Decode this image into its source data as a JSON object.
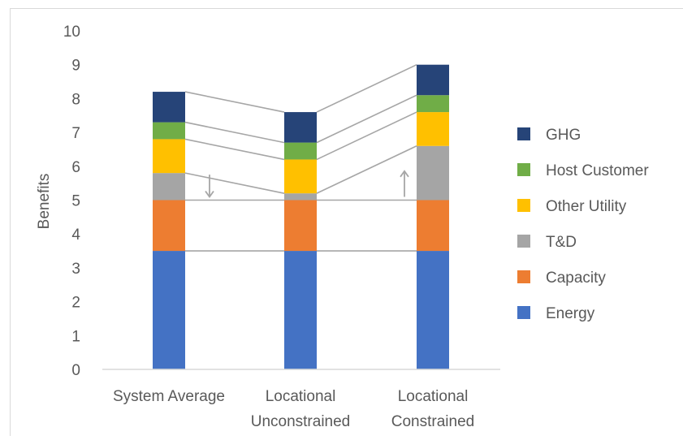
{
  "chart_data": {
    "type": "bar",
    "stacked": true,
    "title": "",
    "xlabel": "",
    "ylabel": "Benefits",
    "ylim": [
      0,
      10
    ],
    "yticks": [
      "0",
      "1",
      "2",
      "3",
      "4",
      "5",
      "6",
      "7",
      "8",
      "9",
      "10"
    ],
    "categories": [
      [
        "System Average"
      ],
      [
        "Locational",
        "Unconstrained"
      ],
      [
        "Locational",
        "Constrained"
      ]
    ],
    "series": [
      {
        "name": "Energy",
        "color": "#4472c4",
        "values": [
          3.5,
          3.5,
          3.5
        ]
      },
      {
        "name": "Capacity",
        "color": "#ed7d31",
        "values": [
          1.5,
          1.5,
          1.5
        ]
      },
      {
        "name": "T&D",
        "color": "#a5a5a5",
        "values": [
          0.8,
          0.2,
          1.6
        ]
      },
      {
        "name": "Other Utility",
        "color": "#ffc000",
        "values": [
          1.0,
          1.0,
          1.0
        ]
      },
      {
        "name": "Host Customer",
        "color": "#70ad47",
        "values": [
          0.5,
          0.5,
          0.5
        ]
      },
      {
        "name": "GHG",
        "color": "#264478",
        "values": [
          0.9,
          0.9,
          0.9
        ]
      }
    ],
    "connector_lines": true,
    "arrows": [
      {
        "category_index": 0,
        "direction": "down",
        "from": 5.8,
        "to": 5.0
      },
      {
        "category_index": 2,
        "direction": "up",
        "from": 5.0,
        "to": 6.0
      }
    ],
    "legend": {
      "position": "right",
      "order": [
        "GHG",
        "Host Customer",
        "Other Utility",
        "T&D",
        "Capacity",
        "Energy"
      ]
    },
    "grid": false
  }
}
